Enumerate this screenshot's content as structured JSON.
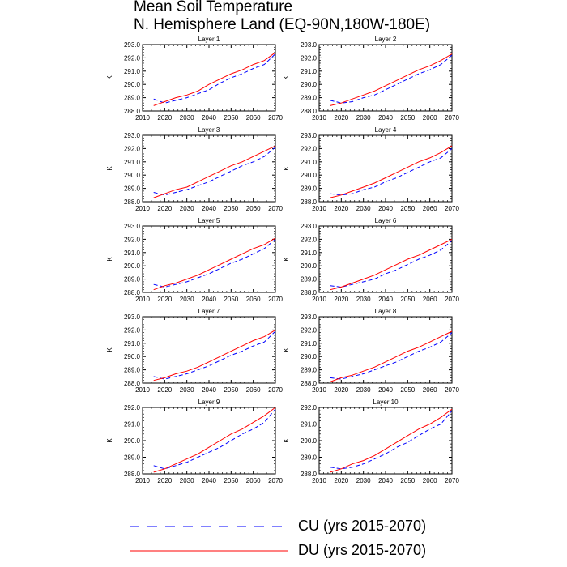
{
  "title": "Mean Soil Temperature",
  "subtitle": "N. Hemisphere Land (EQ-90N,180W-180E)",
  "colors": {
    "CU": "#0000ff",
    "DU": "#ff0000"
  },
  "legend": [
    {
      "key": "CU",
      "label": "CU (yrs 2015-2070)",
      "style": "dashed"
    },
    {
      "key": "DU",
      "label": "DU (yrs 2015-2070)",
      "style": "solid"
    }
  ],
  "chart_data": [
    {
      "type": "line",
      "title": "Layer 1",
      "xlabel": "",
      "ylabel": "K",
      "xlim": [
        2010,
        2070
      ],
      "ylim": [
        288.0,
        293.0
      ],
      "xticks": [
        "2010",
        "2020",
        "2030",
        "2040",
        "2050",
        "2060",
        "2070"
      ],
      "yticks": [
        "288.0",
        "289.0",
        "290.0",
        "291.0",
        "292.0",
        "293.0"
      ],
      "x": [
        2015,
        2020,
        2025,
        2030,
        2035,
        2040,
        2045,
        2050,
        2055,
        2060,
        2065,
        2070
      ],
      "series": [
        {
          "name": "CU",
          "values": [
            288.9,
            288.6,
            288.8,
            289.0,
            289.3,
            289.6,
            290.1,
            290.5,
            290.8,
            291.2,
            291.5,
            292.3
          ]
        },
        {
          "name": "DU",
          "values": [
            288.4,
            288.7,
            289.0,
            289.2,
            289.5,
            290.0,
            290.4,
            290.8,
            291.1,
            291.5,
            291.8,
            292.4
          ]
        }
      ]
    },
    {
      "type": "line",
      "title": "Layer 2",
      "xlabel": "",
      "ylabel": "K",
      "xlim": [
        2010,
        2070
      ],
      "ylim": [
        288.0,
        293.0
      ],
      "xticks": [
        "2010",
        "2020",
        "2030",
        "2040",
        "2050",
        "2060",
        "2070"
      ],
      "yticks": [
        "288.0",
        "289.0",
        "290.0",
        "291.0",
        "292.0",
        "293.0"
      ],
      "x": [
        2015,
        2020,
        2025,
        2030,
        2035,
        2040,
        2045,
        2050,
        2055,
        2060,
        2065,
        2070
      ],
      "series": [
        {
          "name": "CU",
          "values": [
            288.8,
            288.6,
            288.7,
            289.0,
            289.2,
            289.6,
            290.0,
            290.4,
            290.8,
            291.1,
            291.5,
            292.2
          ]
        },
        {
          "name": "DU",
          "values": [
            288.4,
            288.6,
            288.9,
            289.2,
            289.5,
            289.9,
            290.3,
            290.7,
            291.1,
            291.4,
            291.8,
            292.3
          ]
        }
      ]
    },
    {
      "type": "line",
      "title": "Layer 3",
      "xlabel": "",
      "ylabel": "K",
      "xlim": [
        2010,
        2070
      ],
      "ylim": [
        288.0,
        293.0
      ],
      "xticks": [
        "2010",
        "2020",
        "2030",
        "2040",
        "2050",
        "2060",
        "2070"
      ],
      "yticks": [
        "288.0",
        "289.0",
        "290.0",
        "291.0",
        "292.0",
        "293.0"
      ],
      "x": [
        2015,
        2020,
        2025,
        2030,
        2035,
        2040,
        2045,
        2050,
        2055,
        2060,
        2065,
        2070
      ],
      "series": [
        {
          "name": "CU",
          "values": [
            288.7,
            288.5,
            288.7,
            288.9,
            289.2,
            289.5,
            289.9,
            290.3,
            290.7,
            291.0,
            291.4,
            292.1
          ]
        },
        {
          "name": "DU",
          "values": [
            288.3,
            288.6,
            288.9,
            289.1,
            289.5,
            289.9,
            290.3,
            290.7,
            291.0,
            291.4,
            291.8,
            292.2
          ]
        }
      ]
    },
    {
      "type": "line",
      "title": "Layer 4",
      "xlabel": "",
      "ylabel": "K",
      "xlim": [
        2010,
        2070
      ],
      "ylim": [
        288.0,
        293.0
      ],
      "xticks": [
        "2010",
        "2020",
        "2030",
        "2040",
        "2050",
        "2060",
        "2070"
      ],
      "yticks": [
        "288.0",
        "289.0",
        "290.0",
        "291.0",
        "292.0",
        "293.0"
      ],
      "x": [
        2015,
        2020,
        2025,
        2030,
        2035,
        2040,
        2045,
        2050,
        2055,
        2060,
        2065,
        2070
      ],
      "series": [
        {
          "name": "CU",
          "values": [
            288.6,
            288.5,
            288.6,
            288.9,
            289.1,
            289.5,
            289.8,
            290.2,
            290.6,
            291.0,
            291.3,
            292.0
          ]
        },
        {
          "name": "DU",
          "values": [
            288.3,
            288.5,
            288.8,
            289.1,
            289.4,
            289.8,
            290.2,
            290.6,
            291.0,
            291.3,
            291.7,
            292.2
          ]
        }
      ]
    },
    {
      "type": "line",
      "title": "Layer 5",
      "xlabel": "",
      "ylabel": "K",
      "xlim": [
        2010,
        2070
      ],
      "ylim": [
        288.0,
        293.0
      ],
      "xticks": [
        "2010",
        "2020",
        "2030",
        "2040",
        "2050",
        "2060",
        "2070"
      ],
      "yticks": [
        "288.0",
        "289.0",
        "290.0",
        "291.0",
        "292.0",
        "293.0"
      ],
      "x": [
        2015,
        2020,
        2025,
        2030,
        2035,
        2040,
        2045,
        2050,
        2055,
        2060,
        2065,
        2070
      ],
      "series": [
        {
          "name": "CU",
          "values": [
            288.6,
            288.4,
            288.6,
            288.8,
            289.1,
            289.4,
            289.8,
            290.2,
            290.5,
            290.9,
            291.3,
            292.0
          ]
        },
        {
          "name": "DU",
          "values": [
            288.2,
            288.5,
            288.7,
            289.0,
            289.3,
            289.7,
            290.1,
            290.5,
            290.9,
            291.3,
            291.6,
            292.1
          ]
        }
      ]
    },
    {
      "type": "line",
      "title": "Layer 6",
      "xlabel": "",
      "ylabel": "K",
      "xlim": [
        2010,
        2070
      ],
      "ylim": [
        288.0,
        293.0
      ],
      "xticks": [
        "2010",
        "2020",
        "2030",
        "2040",
        "2050",
        "2060",
        "2070"
      ],
      "yticks": [
        "288.0",
        "289.0",
        "290.0",
        "291.0",
        "292.0",
        "293.0"
      ],
      "x": [
        2015,
        2020,
        2025,
        2030,
        2035,
        2040,
        2045,
        2050,
        2055,
        2060,
        2065,
        2070
      ],
      "series": [
        {
          "name": "CU",
          "values": [
            288.5,
            288.4,
            288.6,
            288.8,
            289.0,
            289.4,
            289.7,
            290.1,
            290.5,
            290.8,
            291.2,
            291.9
          ]
        },
        {
          "name": "DU",
          "values": [
            288.2,
            288.4,
            288.7,
            289.0,
            289.3,
            289.7,
            290.1,
            290.5,
            290.8,
            291.2,
            291.6,
            292.0
          ]
        }
      ]
    },
    {
      "type": "line",
      "title": "Layer 7",
      "xlabel": "",
      "ylabel": "K",
      "xlim": [
        2010,
        2070
      ],
      "ylim": [
        288.0,
        293.0
      ],
      "xticks": [
        "2010",
        "2020",
        "2030",
        "2040",
        "2050",
        "2060",
        "2070"
      ],
      "yticks": [
        "288.0",
        "289.0",
        "290.0",
        "291.0",
        "292.0",
        "293.0"
      ],
      "x": [
        2015,
        2020,
        2025,
        2030,
        2035,
        2040,
        2045,
        2050,
        2055,
        2060,
        2065,
        2070
      ],
      "series": [
        {
          "name": "CU",
          "values": [
            288.5,
            288.3,
            288.5,
            288.7,
            289.0,
            289.3,
            289.7,
            290.1,
            290.4,
            290.8,
            291.1,
            291.9
          ]
        },
        {
          "name": "DU",
          "values": [
            288.2,
            288.4,
            288.7,
            288.9,
            289.2,
            289.6,
            290.0,
            290.4,
            290.8,
            291.2,
            291.5,
            292.0
          ]
        }
      ]
    },
    {
      "type": "line",
      "title": "Layer 8",
      "xlabel": "",
      "ylabel": "K",
      "xlim": [
        2010,
        2070
      ],
      "ylim": [
        288.0,
        293.0
      ],
      "xticks": [
        "2010",
        "2020",
        "2030",
        "2040",
        "2050",
        "2060",
        "2070"
      ],
      "yticks": [
        "288.0",
        "289.0",
        "290.0",
        "291.0",
        "292.0",
        "293.0"
      ],
      "x": [
        2015,
        2020,
        2025,
        2030,
        2035,
        2040,
        2045,
        2050,
        2055,
        2060,
        2065,
        2070
      ],
      "series": [
        {
          "name": "CU",
          "values": [
            288.4,
            288.3,
            288.5,
            288.7,
            289.0,
            289.3,
            289.6,
            290.0,
            290.4,
            290.7,
            291.1,
            291.8
          ]
        },
        {
          "name": "DU",
          "values": [
            288.1,
            288.4,
            288.6,
            288.9,
            289.2,
            289.6,
            290.0,
            290.4,
            290.7,
            291.1,
            291.5,
            291.9
          ]
        }
      ]
    },
    {
      "type": "line",
      "title": "Layer 9",
      "xlabel": "",
      "ylabel": "K",
      "xlim": [
        2010,
        2070
      ],
      "ylim": [
        288.0,
        292.0
      ],
      "xticks": [
        "2010",
        "2020",
        "2030",
        "2040",
        "2050",
        "2060",
        "2070"
      ],
      "yticks": [
        "288.0",
        "289.0",
        "290.0",
        "291.0",
        "292.0"
      ],
      "x": [
        2015,
        2020,
        2025,
        2030,
        2035,
        2040,
        2045,
        2050,
        2055,
        2060,
        2065,
        2070
      ],
      "series": [
        {
          "name": "CU",
          "values": [
            288.5,
            288.3,
            288.5,
            288.7,
            289.0,
            289.3,
            289.6,
            290.0,
            290.4,
            290.7,
            291.1,
            291.9
          ]
        },
        {
          "name": "DU",
          "values": [
            288.1,
            288.3,
            288.6,
            288.9,
            289.2,
            289.6,
            290.0,
            290.4,
            290.7,
            291.1,
            291.5,
            292.0
          ]
        }
      ]
    },
    {
      "type": "line",
      "title": "Layer 10",
      "xlabel": "",
      "ylabel": "K",
      "xlim": [
        2010,
        2070
      ],
      "ylim": [
        288.0,
        292.0
      ],
      "xticks": [
        "2010",
        "2020",
        "2030",
        "2040",
        "2050",
        "2060",
        "2070"
      ],
      "yticks": [
        "288.0",
        "289.0",
        "290.0",
        "291.0",
        "292.0"
      ],
      "x": [
        2015,
        2020,
        2025,
        2030,
        2035,
        2040,
        2045,
        2050,
        2055,
        2060,
        2065,
        2070
      ],
      "series": [
        {
          "name": "CU",
          "values": [
            288.4,
            288.3,
            288.4,
            288.6,
            288.9,
            289.2,
            289.6,
            289.9,
            290.3,
            290.7,
            291.0,
            291.8
          ]
        },
        {
          "name": "DU",
          "values": [
            288.1,
            288.3,
            288.6,
            288.8,
            289.1,
            289.5,
            289.9,
            290.3,
            290.7,
            291.0,
            291.4,
            291.9
          ]
        }
      ]
    }
  ]
}
